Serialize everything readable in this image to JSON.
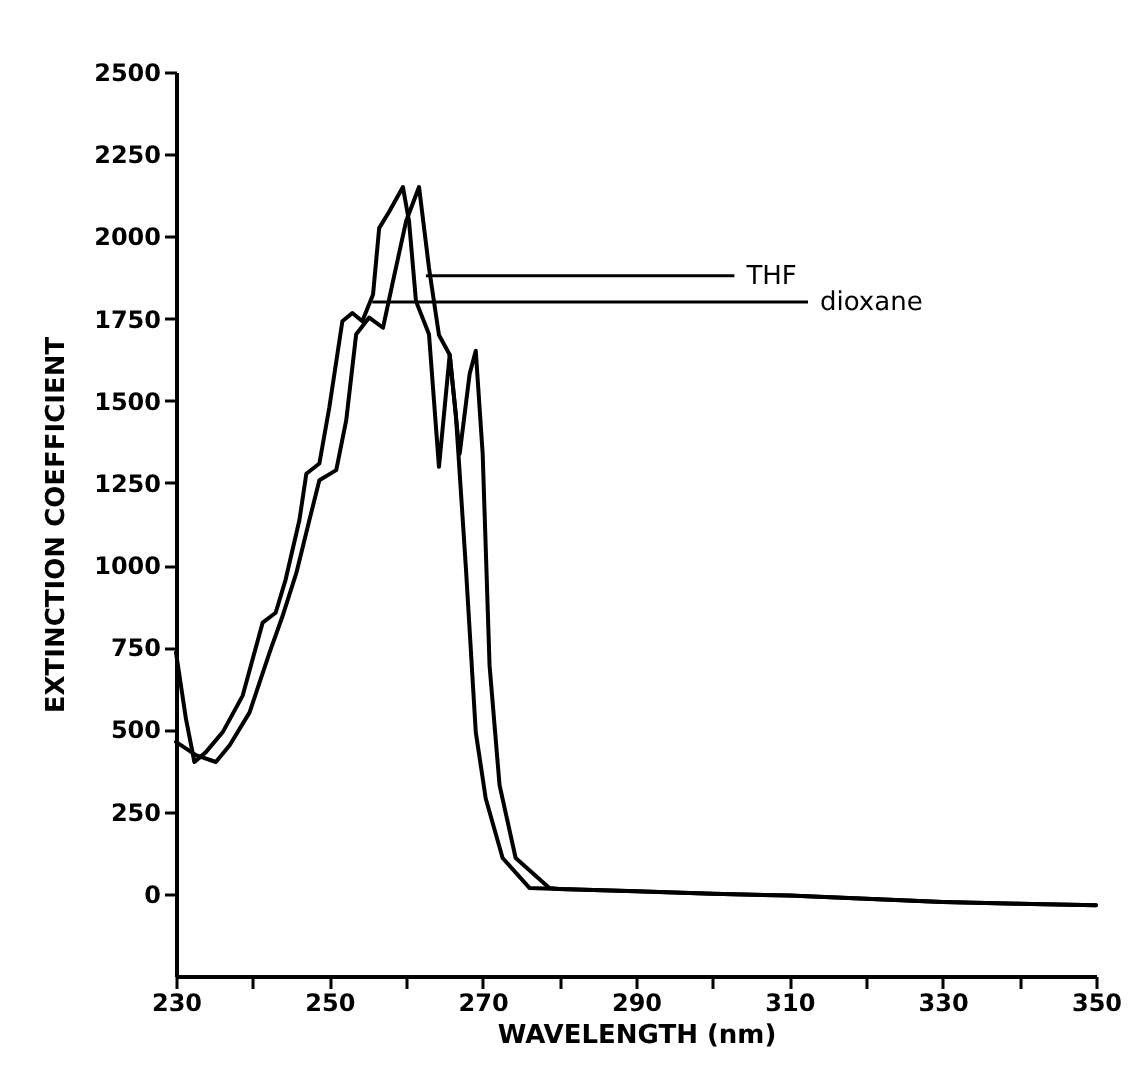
{
  "chart_data": {
    "type": "line",
    "xlabel": "WAVELENGTH (nm)",
    "ylabel": "EXTINCTION COEFFICIENT",
    "xlim": [
      230,
      350
    ],
    "ylim": [
      -250,
      2500
    ],
    "xticks": [
      230,
      {
        "value": 240,
        "label": null
      },
      250,
      {
        "value": 260,
        "label": null
      },
      270,
      {
        "value": 280,
        "label": null
      },
      290,
      {
        "value": 300,
        "label": null
      },
      310,
      {
        "value": 320,
        "label": null
      },
      330,
      {
        "value": 340,
        "label": null
      },
      350
    ],
    "yticks": [
      0,
      250,
      500,
      750,
      1000,
      1250,
      1500,
      1750,
      2000,
      2250,
      2500
    ],
    "grid": false,
    "marker": "none",
    "line_style": "solid",
    "series": [
      {
        "color": "#000000",
        "x": [
          230,
          231.3,
          232.4,
          233.9,
          236.1,
          238.7,
          241.3,
          243,
          244.3,
          246.1,
          247,
          248.7,
          250,
          251.7,
          253,
          254.3,
          255.7,
          256.5,
          257.8,
          259.6,
          260.4,
          261.3,
          263,
          264.3,
          265.7,
          266.5,
          267.8,
          269.1,
          270.4,
          272.6,
          276.1,
          280,
          290,
          300,
          310,
          320,
          330,
          340,
          350
        ],
        "values": [
          734,
          532,
          401,
          431,
          492,
          603,
          825,
          855,
          956,
          1137,
          1278,
          1309,
          1480,
          1742,
          1767,
          1742,
          1823,
          2025,
          2075,
          2150,
          2045,
          1803,
          1702,
          1299,
          1640,
          1458,
          996,
          492,
          290,
          109,
          18,
          15,
          8,
          0,
          -5,
          -15,
          -25,
          -30,
          -35
        ]
      },
      {
        "color": "#000000",
        "x": [
          230,
          232.6,
          235.2,
          237,
          239.6,
          242.2,
          243.9,
          245.7,
          247.4,
          248.7,
          250.9,
          252.2,
          253.5,
          255.2,
          257,
          258.3,
          260,
          261.7,
          263,
          264.3,
          265.7,
          267,
          268.3,
          269.1,
          270,
          270.9,
          272.2,
          274.3,
          278.7,
          280,
          290,
          300,
          310,
          320,
          330,
          340,
          350
        ],
        "values": [
          462,
          422,
          401,
          452,
          552,
          734,
          845,
          976,
          1137,
          1258,
          1289,
          1440,
          1702,
          1753,
          1722,
          1863,
          2045,
          2150,
          1904,
          1700,
          1640,
          1339,
          1581,
          1652,
          1339,
          694,
          331,
          109,
          18,
          15,
          8,
          0,
          -5,
          -15,
          -25,
          -30,
          -35
        ]
      }
    ],
    "annotations": [
      {
        "text": "THF",
        "x": 262.6,
        "y": 1880
      },
      {
        "text": "dioxane",
        "x": 255.6,
        "y": 1800
      }
    ]
  }
}
